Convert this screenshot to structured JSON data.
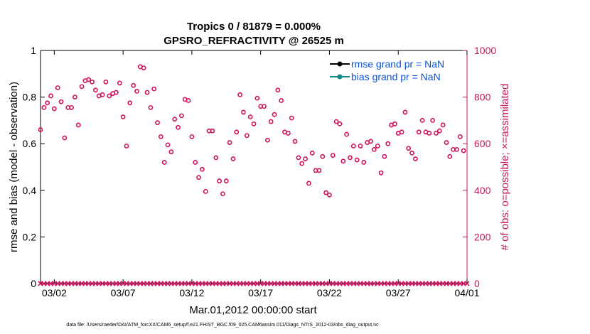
{
  "chart_data": {
    "type": "scatter",
    "title_line1": "Tropics 0 / 81879 = 0.000%",
    "title_line2": "GPSRO_REFRACTIVITY @ 26525 m",
    "xlabel": "Mar.01,2012 00:00:00 start",
    "ylabel_left": "rmse and bias (model - observation)",
    "ylabel_right": "# of obs: o=possible; ×=assimilated",
    "xlim": [
      1,
      32
    ],
    "ylim_left": [
      0,
      1
    ],
    "ylim_right": [
      0,
      1000
    ],
    "x_ticks": [
      {
        "x": 2,
        "label": "03/02"
      },
      {
        "x": 7,
        "label": "03/07"
      },
      {
        "x": 12,
        "label": "03/12"
      },
      {
        "x": 17,
        "label": "03/17"
      },
      {
        "x": 22,
        "label": "03/22"
      },
      {
        "x": 27,
        "label": "03/27"
      },
      {
        "x": 32,
        "label": "04/01"
      }
    ],
    "y_ticks_left": [
      "0",
      "0.2",
      "0.4",
      "0.6",
      "0.8",
      "1"
    ],
    "y_ticks_right": [
      "0",
      "200",
      "400",
      "600",
      "800",
      "1000"
    ],
    "legend": [
      {
        "label": "rmse grand pr = NaN",
        "color": "#000000"
      },
      {
        "label": "bias grand pr = NaN",
        "color": "#138a8a"
      }
    ],
    "colors": {
      "obs": "#d0115e",
      "axis": "#000000",
      "right_axis": "#c2185b"
    },
    "possible_obs": {
      "x": [
        1.0,
        1.25,
        1.5,
        1.75,
        2.0,
        2.25,
        2.5,
        2.75,
        3.0,
        3.25,
        3.5,
        3.75,
        4.0,
        4.25,
        4.5,
        4.75,
        5.0,
        5.25,
        5.5,
        5.75,
        6.0,
        6.25,
        6.5,
        6.75,
        7.0,
        7.25,
        7.5,
        7.75,
        8.0,
        8.25,
        8.5,
        8.75,
        9.0,
        9.25,
        9.5,
        9.75,
        10.0,
        10.25,
        10.5,
        10.75,
        11.0,
        11.25,
        11.5,
        11.75,
        12.0,
        12.25,
        12.5,
        12.75,
        13.0,
        13.25,
        13.5,
        13.75,
        14.0,
        14.25,
        14.5,
        14.75,
        15.0,
        15.25,
        15.5,
        15.75,
        16.0,
        16.25,
        16.5,
        16.75,
        17.0,
        17.25,
        17.5,
        17.75,
        18.0,
        18.25,
        18.5,
        18.75,
        19.0,
        19.25,
        19.5,
        19.75,
        20.0,
        20.25,
        20.5,
        20.75,
        21.0,
        21.25,
        21.5,
        21.75,
        22.0,
        22.25,
        22.5,
        22.75,
        23.0,
        23.25,
        23.5,
        23.75,
        24.0,
        24.25,
        24.5,
        24.75,
        25.0,
        25.25,
        25.5,
        25.75,
        26.0,
        26.25,
        26.5,
        26.75,
        27.0,
        27.25,
        27.5,
        27.75,
        28.0,
        28.25,
        28.5,
        28.75,
        29.0,
        29.25,
        29.5,
        29.75,
        30.0,
        30.25,
        30.5,
        30.75,
        31.0,
        31.25,
        31.5,
        31.75
      ],
      "y": [
        660,
        755,
        775,
        805,
        750,
        840,
        780,
        625,
        755,
        755,
        800,
        680,
        845,
        870,
        875,
        865,
        830,
        805,
        810,
        865,
        805,
        815,
        820,
        860,
        715,
        590,
        775,
        850,
        825,
        930,
        925,
        820,
        755,
        835,
        690,
        630,
        520,
        595,
        565,
        705,
        670,
        720,
        790,
        785,
        630,
        520,
        455,
        490,
        395,
        655,
        655,
        540,
        440,
        385,
        440,
        605,
        535,
        650,
        810,
        735,
        635,
        715,
        685,
        795,
        760,
        760,
        615,
        695,
        725,
        830,
        785,
        650,
        645,
        710,
        610,
        540,
        515,
        535,
        430,
        560,
        485,
        485,
        545,
        390,
        380,
        550,
        695,
        685,
        525,
        640,
        540,
        590,
        530,
        590,
        520,
        605,
        610,
        575,
        590,
        475,
        545,
        600,
        680,
        685,
        645,
        650,
        735,
        580,
        560,
        535,
        650,
        700,
        650,
        645,
        700,
        645,
        655,
        680,
        605,
        545,
        575,
        575,
        630,
        570
      ]
    },
    "assimilated_obs": {
      "note": "all zero",
      "x_start": 1.0,
      "x_end": 32.0,
      "x_step": 0.25,
      "value": 0
    },
    "footnote": "data file: /Users/raeder/DAI/ATM_forcXX/CAM6_setup/f.e21.FHIST_BGC.f09_025.CAM6assim.011/Diags_NTrS_2012-03/obs_diag_output.nc"
  }
}
